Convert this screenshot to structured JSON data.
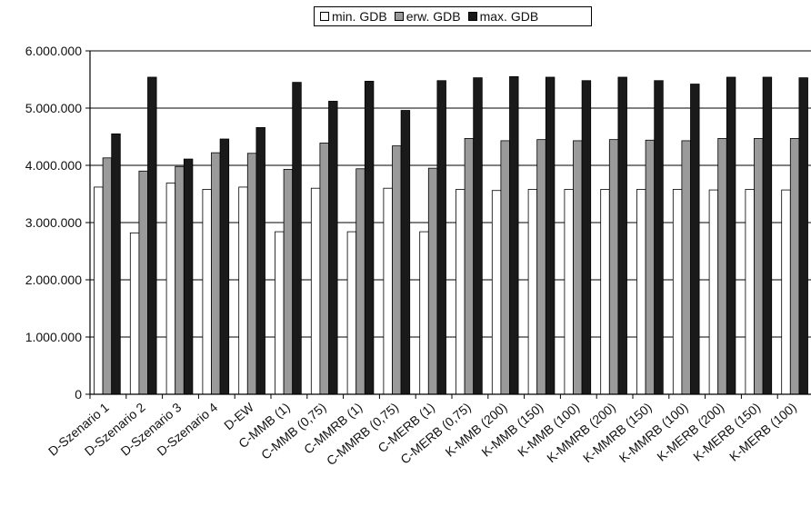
{
  "chart_data": {
    "type": "bar",
    "title": "",
    "xlabel": "",
    "ylabel": "",
    "ylim": [
      0,
      6000000
    ],
    "yticks": [
      0,
      1000000,
      2000000,
      3000000,
      4000000,
      5000000,
      6000000
    ],
    "ytick_labels": [
      "0",
      "1.000.000",
      "2.000.000",
      "3.000.000",
      "4.000.000",
      "5.000.000",
      "6.000.000"
    ],
    "grid": true,
    "legend_position": "top-center",
    "categories": [
      "D-Szenario 1",
      "D-Szenario 2",
      "D-Szenario 3",
      "D-Szenario 4",
      "D-EW",
      "C-MMB (1)",
      "C-MMB (0,75)",
      "C-MMRB (1)",
      "C-MMRB (0,75)",
      "C-MERB (1)",
      "C-MERB (0,75)",
      "K-MMB (200)",
      "K-MMB (150)",
      "K-MMB (100)",
      "K-MMRB (200)",
      "K-MMRB (150)",
      "K-MMRB (100)",
      "K-MERB (200)",
      "K-MERB (150)",
      "K-MERB (100)"
    ],
    "series": [
      {
        "name": "min. GDB",
        "color": "#ffffff",
        "values": [
          3620000,
          2820000,
          3690000,
          3580000,
          3620000,
          2840000,
          3600000,
          2840000,
          3600000,
          2840000,
          3580000,
          3560000,
          3580000,
          3580000,
          3580000,
          3580000,
          3580000,
          3570000,
          3580000,
          3570000
        ]
      },
      {
        "name": "erw. GDB",
        "color": "#9a9a9a",
        "values": [
          4130000,
          3900000,
          3980000,
          4220000,
          4210000,
          3930000,
          4390000,
          3940000,
          4340000,
          3950000,
          4470000,
          4430000,
          4450000,
          4430000,
          4450000,
          4440000,
          4430000,
          4470000,
          4470000,
          4470000
        ]
      },
      {
        "name": "max. GDB",
        "color": "#1a1a1a",
        "values": [
          4550000,
          5540000,
          4110000,
          4460000,
          4660000,
          5450000,
          5120000,
          5470000,
          4960000,
          5480000,
          5530000,
          5550000,
          5540000,
          5480000,
          5540000,
          5480000,
          5420000,
          5540000,
          5540000,
          5530000
        ]
      }
    ]
  }
}
